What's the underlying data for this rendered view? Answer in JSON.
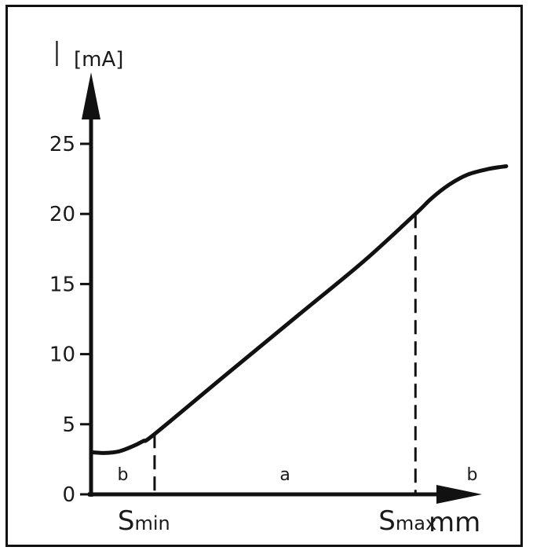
{
  "chart_data": {
    "type": "line",
    "ylabel": "I",
    "yunit": "[mA]",
    "xlabel": "mm",
    "yticks": [
      0,
      5,
      10,
      15,
      20,
      25
    ],
    "ylim": [
      0,
      25
    ],
    "grid": false,
    "series": [
      {
        "values": [
          [
            0.0,
            3.0
          ],
          [
            0.6,
            2.95
          ],
          [
            1.2,
            3.05
          ],
          [
            1.8,
            3.4
          ],
          [
            2.3,
            3.8
          ],
          [
            2.8,
            4.3
          ],
          [
            6.0,
            8.6
          ],
          [
            9.0,
            12.6
          ],
          [
            12.0,
            16.6
          ],
          [
            14.3,
            20.0
          ],
          [
            15.0,
            21.1
          ],
          [
            15.8,
            22.1
          ],
          [
            16.6,
            22.8
          ],
          [
            17.5,
            23.2
          ],
          [
            18.3,
            23.4
          ]
        ]
      }
    ],
    "markers": [
      {
        "s": "S",
        "sub": "min",
        "x": 2.8,
        "y": 4.3
      },
      {
        "s": "S",
        "sub": "max",
        "x": 14.3,
        "y": 20.0
      }
    ],
    "regions": [
      {
        "label": "b",
        "x": 1.4
      },
      {
        "label": "a",
        "x": 8.55
      },
      {
        "label": "b",
        "x": 16.8
      }
    ],
    "colors": {
      "line": "#111111",
      "axis": "#111111"
    }
  }
}
